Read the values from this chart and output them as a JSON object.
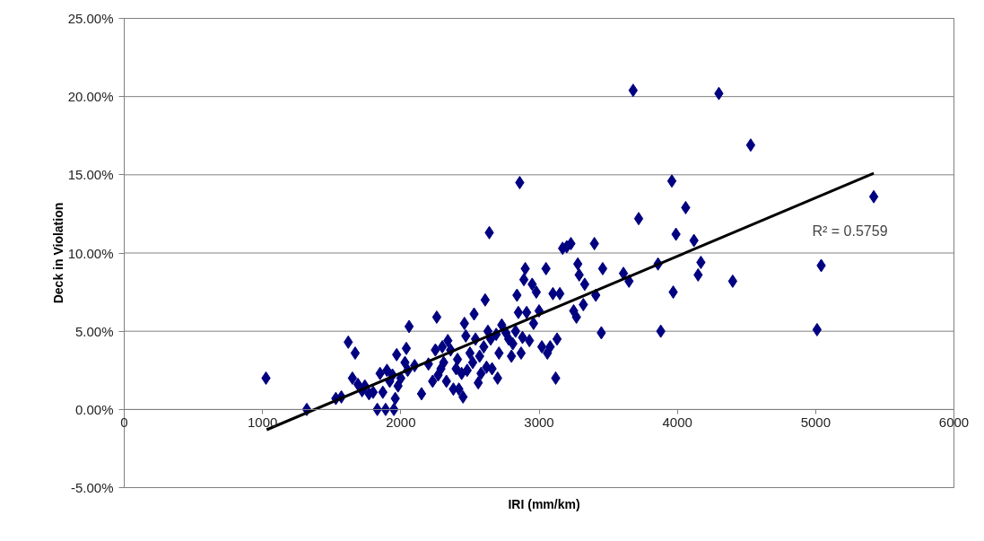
{
  "chart_data": {
    "type": "scatter",
    "xlabel": "IRI (mm/km)",
    "ylabel": "Deck in Violation",
    "xlim": [
      0,
      6000
    ],
    "xticks": [
      0,
      1000,
      2000,
      3000,
      4000,
      5000,
      6000
    ],
    "ylim": [
      -5,
      25
    ],
    "yticks": [
      {
        "value": -5,
        "label": "-5.00%"
      },
      {
        "value": 0,
        "label": "0.00%"
      },
      {
        "value": 5,
        "label": "5.00%"
      },
      {
        "value": 10,
        "label": "10.00%"
      },
      {
        "value": 15,
        "label": "15.00%"
      },
      {
        "value": 20,
        "label": "20.00%"
      },
      {
        "value": 25,
        "label": "25.00%"
      }
    ],
    "grid": "y",
    "annotations": [
      "R² = 0.5759"
    ],
    "series": [
      {
        "marker": "diamond",
        "color": "#000080",
        "x": [
          1025,
          1320,
          1530,
          1570,
          1620,
          1650,
          1670,
          1690,
          1720,
          1740,
          1770,
          1800,
          1830,
          1850,
          1870,
          1890,
          1900,
          1920,
          1940,
          1950,
          1960,
          1970,
          1980,
          2000,
          2030,
          2040,
          2050,
          2060,
          2100,
          2150,
          2200,
          2230,
          2250,
          2260,
          2270,
          2290,
          2300,
          2310,
          2330,
          2340,
          2360,
          2380,
          2400,
          2410,
          2420,
          2440,
          2450,
          2460,
          2470,
          2480,
          2500,
          2520,
          2530,
          2540,
          2560,
          2570,
          2580,
          2600,
          2610,
          2620,
          2630,
          2640,
          2650,
          2660,
          2690,
          2700,
          2710,
          2730,
          2760,
          2780,
          2800,
          2810,
          2830,
          2840,
          2850,
          2860,
          2870,
          2880,
          2890,
          2900,
          2910,
          2930,
          2950,
          2960,
          2980,
          3000,
          3020,
          3050,
          3060,
          3080,
          3100,
          3120,
          3130,
          3150,
          3170,
          3200,
          3230,
          3250,
          3270,
          3280,
          3290,
          3320,
          3330,
          3400,
          3410,
          3450,
          3460,
          3610,
          3650,
          3680,
          3720,
          3860,
          3880,
          3960,
          3970,
          3990,
          4060,
          4120,
          4150,
          4170,
          4300,
          4400,
          4530,
          5010,
          5040,
          5420
        ],
        "values": [
          2.0,
          0.0,
          0.7,
          0.8,
          4.3,
          2.0,
          3.6,
          1.6,
          1.2,
          1.5,
          1.0,
          1.1,
          0.0,
          2.3,
          1.1,
          0.0,
          2.5,
          1.8,
          2.2,
          0.0,
          0.7,
          3.5,
          1.5,
          2.0,
          3.0,
          3.9,
          2.5,
          5.3,
          2.8,
          1.0,
          2.9,
          1.8,
          3.8,
          5.9,
          2.2,
          2.6,
          4.0,
          3.0,
          1.8,
          4.4,
          3.8,
          1.3,
          2.6,
          3.2,
          1.3,
          2.3,
          0.8,
          5.5,
          4.7,
          2.5,
          3.6,
          3.0,
          6.1,
          4.5,
          1.7,
          3.4,
          2.3,
          4.0,
          7.0,
          2.7,
          5.0,
          11.3,
          4.5,
          2.6,
          4.8,
          2.0,
          3.6,
          5.4,
          4.9,
          4.5,
          3.4,
          4.2,
          5.0,
          7.3,
          6.2,
          14.5,
          3.6,
          4.6,
          8.3,
          9.0,
          6.2,
          4.4,
          8.0,
          5.5,
          7.5,
          6.3,
          4.0,
          9.0,
          3.6,
          4.0,
          7.4,
          2.0,
          4.5,
          7.4,
          10.3,
          10.4,
          10.6,
          6.3,
          5.9,
          9.3,
          8.6,
          6.7,
          8.0,
          10.6,
          7.3,
          4.9,
          9.0,
          8.7,
          8.2,
          20.4,
          12.2,
          9.3,
          5.0,
          14.6,
          7.5,
          11.2,
          12.9,
          10.8,
          8.6,
          9.4,
          20.2,
          8.2,
          16.9,
          5.1,
          9.2,
          13.6
        ]
      },
      {
        "type": "line",
        "marker": "none",
        "color": "#000000",
        "x": [
          1030,
          5420
        ],
        "values": [
          -1.3,
          15.1
        ]
      }
    ]
  }
}
